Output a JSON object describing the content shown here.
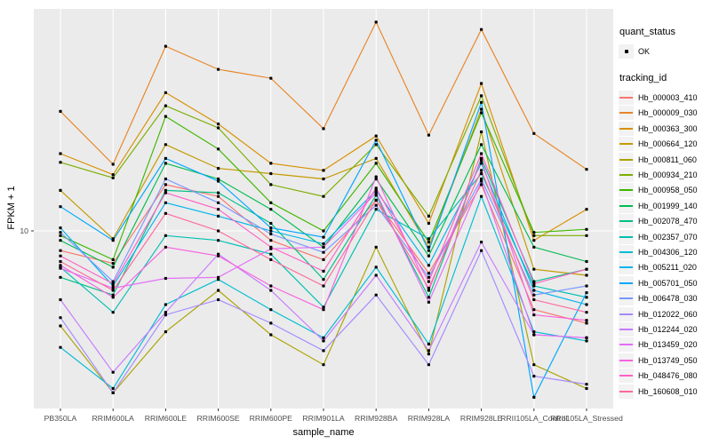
{
  "chart_data": {
    "type": "line",
    "title": "",
    "xlabel": "sample_name",
    "ylabel": "FPKM + 1",
    "y_scale": "log10",
    "y_tick_labels": [
      "10"
    ],
    "y_tick_values": [
      10
    ],
    "grid": "major-white-on-gray",
    "panel_color": "#EBEBEB",
    "gridline_color": "#FFFFFF",
    "point_color": "#000000",
    "tick_label_color": "#4D4D4D",
    "legend_position": "right",
    "categories": [
      "PB350LA",
      "RRIM600LA",
      "RRIM600LE",
      "RRIM600SE",
      "RRIM600PE",
      "RRIM901LA",
      "RRIM928BA",
      "RRIM928LA",
      "RRIM928LE",
      "RRII105LA_Control",
      "RRII105LA_Stressed"
    ],
    "series": [
      {
        "name": "Hb_000003_410",
        "color": "#F8766D",
        "values": [
          8.8,
          8.1,
          13.5,
          12.5,
          9.4,
          8.3,
          12.2,
          7.6,
          13.5,
          6.0,
          5.5
        ]
      },
      {
        "name": "Hb_000009_030",
        "color": "#E88526",
        "values": [
          21.7,
          15.4,
          33.1,
          28.5,
          26.9,
          19.4,
          38.7,
          18.6,
          36.9,
          18.8,
          14.9
        ]
      },
      {
        "name": "Hb_000363_300",
        "color": "#D89000",
        "values": [
          16.5,
          14.4,
          24.5,
          20.0,
          15.5,
          14.8,
          18.5,
          10.5,
          26.0,
          9.4,
          11.5
        ]
      },
      {
        "name": "Hb_000664_120",
        "color": "#C49A00",
        "values": [
          13.0,
          9.5,
          17.5,
          15.0,
          14.5,
          14.0,
          16.0,
          9.0,
          22.0,
          7.8,
          7.5
        ]
      },
      {
        "name": "Hb_000811_060",
        "color": "#ABA300",
        "values": [
          5.4,
          3.5,
          5.2,
          6.8,
          5.1,
          4.2,
          9.0,
          4.5,
          19.0,
          4.2,
          3.6
        ]
      },
      {
        "name": "Hb_000934_210",
        "color": "#7CAE00",
        "values": [
          15.6,
          14.1,
          22.5,
          19.5,
          13.5,
          12.5,
          17.5,
          11.0,
          24.0,
          9.7,
          9.7
        ]
      },
      {
        "name": "Hb_000958_050",
        "color": "#3DB700",
        "values": [
          9.7,
          8.3,
          21.0,
          17.0,
          12.0,
          10.0,
          15.5,
          9.3,
          21.5,
          9.9,
          10.1
        ]
      },
      {
        "name": "Hb_001999_140",
        "color": "#00BC51",
        "values": [
          9.4,
          7.9,
          15.5,
          14.0,
          11.5,
          9.0,
          14.0,
          8.5,
          17.5,
          9.0,
          8.2
        ]
      },
      {
        "name": "Hb_002078_470",
        "color": "#00C087",
        "values": [
          7.4,
          6.6,
          13.0,
          12.8,
          10.5,
          7.3,
          12.6,
          6.5,
          16.0,
          7.2,
          7.8
        ]
      },
      {
        "name": "Hb_002357_070",
        "color": "#00C0B2",
        "values": [
          7.9,
          5.9,
          9.7,
          9.4,
          8.6,
          6.1,
          11.5,
          9.5,
          14.5,
          7.0,
          6.5
        ]
      },
      {
        "name": "Hb_004306_120",
        "color": "#00BDD2",
        "values": [
          4.7,
          3.6,
          6.2,
          7.3,
          6.0,
          5.0,
          7.9,
          4.8,
          12.5,
          5.2,
          4.9
        ]
      },
      {
        "name": "Hb_005211_020",
        "color": "#00B5EC",
        "values": [
          10.2,
          7.0,
          12.0,
          11.0,
          10.0,
          9.2,
          13.0,
          8.0,
          15.5,
          6.8,
          6.2
        ]
      },
      {
        "name": "Hb_005701_050",
        "color": "#00A7FF",
        "values": [
          11.7,
          9.4,
          16.0,
          13.8,
          10.2,
          9.6,
          18.0,
          8.8,
          23.0,
          3.4,
          6.7
        ]
      },
      {
        "name": "Hb_006478_030",
        "color": "#7997FF",
        "values": [
          9.9,
          7.2,
          14.0,
          12.0,
          9.8,
          8.7,
          11.8,
          7.4,
          14.0,
          6.6,
          7.0
        ]
      },
      {
        "name": "Hb_012022_060",
        "color": "#A58AFF",
        "values": [
          5.7,
          3.5,
          5.8,
          6.4,
          5.5,
          4.6,
          6.6,
          4.2,
          8.8,
          3.9,
          3.7
        ]
      },
      {
        "name": "Hb_012244_020",
        "color": "#C77CFF",
        "values": [
          6.4,
          4.0,
          5.9,
          8.6,
          6.8,
          4.9,
          7.5,
          4.6,
          9.3,
          5.1,
          5.0
        ]
      },
      {
        "name": "Hb_013459_020",
        "color": "#E36EF6",
        "values": [
          7.85,
          6.9,
          7.35,
          7.4,
          8.9,
          9.0,
          12.8,
          6.3,
          13.8,
          5.1,
          5.0
        ]
      },
      {
        "name": "Hb_013749_050",
        "color": "#F863DF",
        "values": [
          8.0,
          6.5,
          9.0,
          8.5,
          7.0,
          6.0,
          14.2,
          6.8,
          15.8,
          5.8,
          5.6
        ]
      },
      {
        "name": "Hb_048476_080",
        "color": "#FF61C7",
        "values": [
          8.5,
          7.1,
          12.8,
          11.5,
          9.0,
          7.7,
          13.2,
          7.2,
          16.5,
          7.1,
          7.8
        ]
      },
      {
        "name": "Hb_160608_010",
        "color": "#FF689E",
        "values": [
          8.2,
          6.8,
          11.2,
          10.0,
          8.3,
          7.0,
          12.2,
          6.9,
          14.8,
          6.4,
          5.9
        ]
      }
    ],
    "legend_quant": {
      "title": "quant_status",
      "items": [
        {
          "label": "OK"
        }
      ]
    },
    "legend_tracking": {
      "title": "tracking_id"
    }
  }
}
